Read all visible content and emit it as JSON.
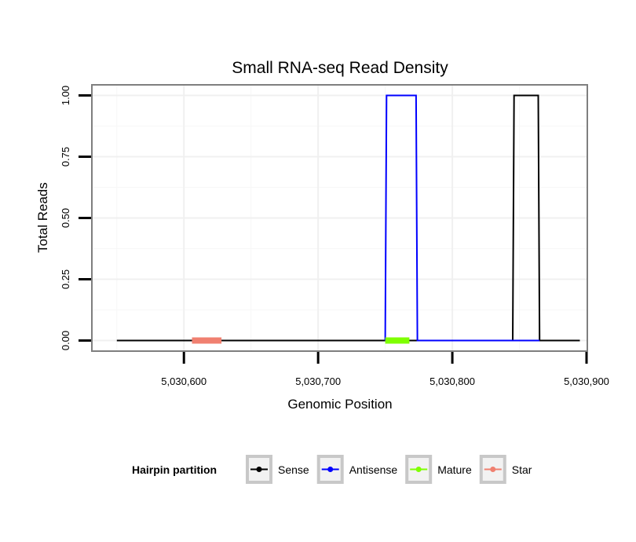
{
  "chart_data": {
    "type": "line",
    "title": "Small RNA-seq Read Density",
    "xlabel": "Genomic Position",
    "ylabel": "Total Reads",
    "xlim": [
      5030532,
      5030900
    ],
    "ylim": [
      -0.04,
      1.04
    ],
    "x_ticks": [
      5030600,
      5030700,
      5030800,
      5030900
    ],
    "x_tick_labels": [
      "5,030,600",
      "5,030,700",
      "5,030,800",
      "5,030,900"
    ],
    "y_ticks": [
      0,
      0.25,
      0.5,
      0.75,
      1
    ],
    "y_tick_labels": [
      "0.00",
      "0.25",
      "0.50",
      "0.75",
      "1.00"
    ],
    "grid": true,
    "legend_position": "bottom",
    "legend_title": "Hairpin partition",
    "series": [
      {
        "name": "Sense",
        "color": "#000000",
        "kind": "line",
        "x": [
          5030550,
          5030845,
          5030846,
          5030864,
          5030865,
          5030895
        ],
        "y": [
          0,
          0,
          1,
          1,
          0,
          0
        ]
      },
      {
        "name": "Antisense",
        "color": "#0000ff",
        "kind": "line",
        "x": [
          5030750,
          5030751,
          5030773,
          5030774,
          5030845,
          5030846,
          5030864,
          5030865
        ],
        "y": [
          0,
          1,
          1,
          0,
          0,
          0,
          0,
          0
        ]
      },
      {
        "name": "Mature",
        "color": "#7fff00",
        "kind": "segment",
        "x": [
          5030750,
          5030768
        ],
        "y": [
          0,
          0
        ]
      },
      {
        "name": "Star",
        "color": "#f08070",
        "kind": "segment",
        "x": [
          5030606,
          5030628
        ],
        "y": [
          0,
          0
        ]
      }
    ]
  }
}
